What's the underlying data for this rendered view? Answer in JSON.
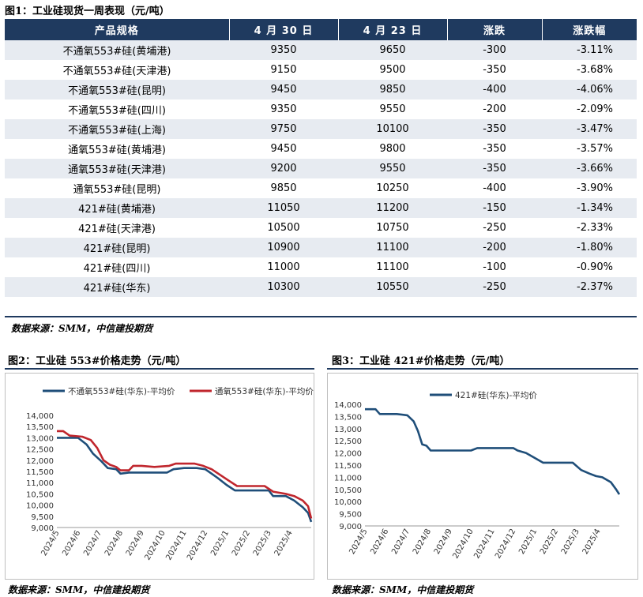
{
  "figure1": {
    "title": "图1：工业硅现货一周表现（元/吨）",
    "headers": [
      "产品规格",
      "4 月 30 日",
      "4 月 23 日",
      "涨跌",
      "涨跌幅"
    ],
    "rows": [
      [
        "不通氧553#硅(黄埔港)",
        "9350",
        "9650",
        "-300",
        "-3.11%"
      ],
      [
        "不通氧553#硅(天津港)",
        "9150",
        "9500",
        "-350",
        "-3.68%"
      ],
      [
        "不通氧553#硅(昆明)",
        "9450",
        "9850",
        "-400",
        "-4.06%"
      ],
      [
        "不通氧553#硅(四川)",
        "9350",
        "9550",
        "-200",
        "-2.09%"
      ],
      [
        "不通氧553#硅(上海)",
        "9750",
        "10100",
        "-350",
        "-3.47%"
      ],
      [
        "通氧553#硅(黄埔港)",
        "9450",
        "9800",
        "-350",
        "-3.57%"
      ],
      [
        "通氧553#硅(天津港)",
        "9200",
        "9550",
        "-350",
        "-3.66%"
      ],
      [
        "通氧553#硅(昆明)",
        "9850",
        "10250",
        "-400",
        "-3.90%"
      ],
      [
        "421#硅(黄埔港)",
        "11050",
        "11200",
        "-150",
        "-1.34%"
      ],
      [
        "421#硅(天津港)",
        "10500",
        "10750",
        "-250",
        "-2.33%"
      ],
      [
        "421#硅(昆明)",
        "10900",
        "11100",
        "-200",
        "-1.80%"
      ],
      [
        "421#硅(四川)",
        "11000",
        "11100",
        "-100",
        "-0.90%"
      ],
      [
        "421#硅(华东)",
        "10300",
        "10550",
        "-250",
        "-2.37%"
      ]
    ],
    "source": "数据来源：SMM，中信建投期货"
  },
  "figure2": {
    "title": "图2：工业硅 553#价格走势（元/吨）",
    "source": "数据来源：SMM，中信建投期货"
  },
  "figure3": {
    "title": "图3：工业硅 421#价格走势（元/吨）",
    "source": "数据来源：SMM，中信建投期货"
  },
  "chart_data": [
    {
      "type": "table",
      "columns": [
        "产品规格",
        "4 月 30 日",
        "4 月 23 日",
        "涨跌",
        "涨跌幅"
      ],
      "rows_ref": "figure1.rows"
    },
    {
      "type": "line",
      "ylim": [
        9000,
        14000
      ],
      "y_ticks": [
        "9,000",
        "9,500",
        "10,000",
        "10,500",
        "11,000",
        "11,500",
        "12,000",
        "12,500",
        "13,000",
        "13,500",
        "14,000"
      ],
      "x_ticks": [
        "2024/5",
        "2024/6",
        "2024/7",
        "2024/8",
        "2024/9",
        "2024/10",
        "2024/11",
        "2024/12",
        "2025/1",
        "2025/2",
        "2025/3",
        "2025/4"
      ],
      "x_range": [
        0,
        12
      ],
      "legend": "top",
      "series": [
        {
          "name": "不通氧553#硅(华东)-平均价",
          "color": "#1f4e79",
          "points": [
            [
              0,
              13000
            ],
            [
              1.0,
              13000
            ],
            [
              1.4,
              12700
            ],
            [
              1.7,
              12300
            ],
            [
              2.1,
              11950
            ],
            [
              2.4,
              11650
            ],
            [
              2.8,
              11600
            ],
            [
              3.0,
              11400
            ],
            [
              3.4,
              11450
            ],
            [
              3.7,
              11450
            ],
            [
              4.0,
              11450
            ],
            [
              4.7,
              11450
            ],
            [
              5.2,
              11450
            ],
            [
              5.5,
              11600
            ],
            [
              6.0,
              11650
            ],
            [
              6.6,
              11650
            ],
            [
              7.0,
              11600
            ],
            [
              7.3,
              11400
            ],
            [
              7.6,
              11200
            ],
            [
              8.0,
              10900
            ],
            [
              8.4,
              10650
            ],
            [
              9.2,
              10650
            ],
            [
              10.0,
              10650
            ],
            [
              10.2,
              10400
            ],
            [
              10.8,
              10400
            ],
            [
              11.2,
              10200
            ],
            [
              11.6,
              9900
            ],
            [
              11.85,
              9650
            ],
            [
              12.0,
              9250
            ]
          ]
        },
        {
          "name": "通氧553#硅(华东)-平均价",
          "color": "#c0262d",
          "points": [
            [
              0,
              13300
            ],
            [
              0.3,
              13300
            ],
            [
              0.6,
              13100
            ],
            [
              1.2,
              13050
            ],
            [
              1.6,
              12900
            ],
            [
              1.9,
              12550
            ],
            [
              2.2,
              12000
            ],
            [
              2.5,
              11800
            ],
            [
              2.8,
              11700
            ],
            [
              3.0,
              11550
            ],
            [
              3.4,
              11550
            ],
            [
              3.6,
              11750
            ],
            [
              4.0,
              11750
            ],
            [
              4.6,
              11700
            ],
            [
              5.3,
              11750
            ],
            [
              5.6,
              11850
            ],
            [
              6.5,
              11850
            ],
            [
              6.9,
              11750
            ],
            [
              7.3,
              11600
            ],
            [
              7.7,
              11350
            ],
            [
              8.1,
              11100
            ],
            [
              8.5,
              10850
            ],
            [
              9.2,
              10850
            ],
            [
              9.8,
              10850
            ],
            [
              10.2,
              10600
            ],
            [
              10.8,
              10500
            ],
            [
              11.2,
              10400
            ],
            [
              11.6,
              10200
            ],
            [
              11.85,
              9950
            ],
            [
              12.0,
              9400
            ]
          ]
        }
      ]
    },
    {
      "type": "line",
      "ylim": [
        9000,
        14000
      ],
      "y_ticks": [
        "9,000",
        "9,500",
        "10,000",
        "10,500",
        "11,000",
        "11,500",
        "12,000",
        "12,500",
        "13,000",
        "13,500",
        "14,000"
      ],
      "x_ticks": [
        "2024/5",
        "2024/6",
        "2024/7",
        "2024/8",
        "2024/9",
        "2024/10",
        "2024/11",
        "2024/12",
        "2025/1",
        "2025/2",
        "2025/3",
        "2025/4"
      ],
      "x_range": [
        0,
        12
      ],
      "legend": "top",
      "series": [
        {
          "name": "421#硅(华东)-平均价",
          "color": "#1f4e79",
          "points": [
            [
              0,
              13800
            ],
            [
              0.5,
              13800
            ],
            [
              0.7,
              13600
            ],
            [
              1.5,
              13600
            ],
            [
              2.0,
              13550
            ],
            [
              2.3,
              13300
            ],
            [
              2.5,
              12900
            ],
            [
              2.7,
              12350
            ],
            [
              2.9,
              12300
            ],
            [
              3.1,
              12100
            ],
            [
              4.0,
              12100
            ],
            [
              5.0,
              12100
            ],
            [
              5.3,
              12200
            ],
            [
              6.0,
              12200
            ],
            [
              7.0,
              12200
            ],
            [
              7.2,
              12100
            ],
            [
              7.6,
              12000
            ],
            [
              8.0,
              11800
            ],
            [
              8.4,
              11600
            ],
            [
              9.2,
              11600
            ],
            [
              9.8,
              11600
            ],
            [
              10.2,
              11300
            ],
            [
              10.6,
              11150
            ],
            [
              10.9,
              11050
            ],
            [
              11.2,
              11000
            ],
            [
              11.6,
              10800
            ],
            [
              11.85,
              10500
            ],
            [
              12.0,
              10300
            ]
          ]
        }
      ]
    }
  ]
}
